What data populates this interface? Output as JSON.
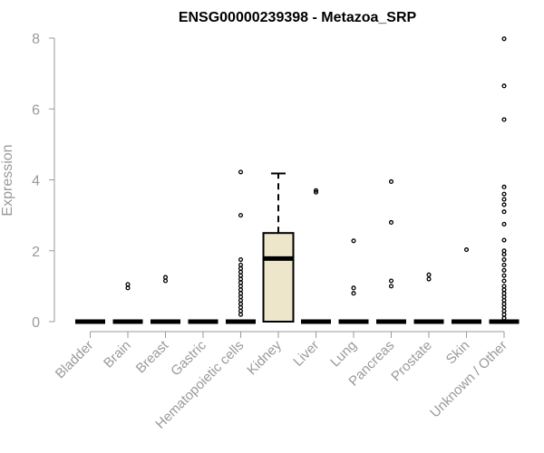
{
  "chart_data": {
    "type": "box",
    "title": "ENSG00000239398 - Metazoa_SRP",
    "xlabel": "",
    "ylabel": "Expression",
    "ylim": [
      0,
      8
    ],
    "yticks": [
      0,
      2,
      4,
      6,
      8
    ],
    "grid": false,
    "box_fill": "#ede6cb",
    "categories": [
      "Bladder",
      "Brain",
      "Breast",
      "Gastric",
      "Hematopoietic cells",
      "Kidney",
      "Liver",
      "Lung",
      "Pancreas",
      "Prostate",
      "Skin",
      "Unknown / Other"
    ],
    "boxes": [
      {
        "category": "Bladder",
        "q1": 0,
        "median": 0,
        "q3": 0,
        "whisker_low": 0,
        "whisker_high": 0,
        "outliers": []
      },
      {
        "category": "Brain",
        "q1": 0,
        "median": 0,
        "q3": 0,
        "whisker_low": 0,
        "whisker_high": 0,
        "outliers": [
          0.95,
          1.05
        ]
      },
      {
        "category": "Breast",
        "q1": 0,
        "median": 0,
        "q3": 0,
        "whisker_low": 0,
        "whisker_high": 0,
        "outliers": [
          1.15,
          1.25
        ]
      },
      {
        "category": "Gastric",
        "q1": 0,
        "median": 0,
        "q3": 0,
        "whisker_low": 0,
        "whisker_high": 0,
        "outliers": []
      },
      {
        "category": "Hematopoietic cells",
        "q1": 0,
        "median": 0,
        "q3": 0,
        "whisker_low": 0,
        "whisker_high": 0,
        "outliers": [
          0.2,
          0.3,
          0.4,
          0.5,
          0.6,
          0.7,
          0.8,
          0.9,
          1.0,
          1.1,
          1.2,
          1.3,
          1.4,
          1.5,
          1.6,
          1.75,
          3.0,
          4.22
        ]
      },
      {
        "category": "Kidney",
        "q1": 0,
        "median": 1.78,
        "q3": 2.5,
        "whisker_low": 0,
        "whisker_high": 4.18,
        "outliers": []
      },
      {
        "category": "Liver",
        "q1": 0,
        "median": 0,
        "q3": 0,
        "whisker_low": 0,
        "whisker_high": 0,
        "outliers": [
          3.65,
          3.7
        ]
      },
      {
        "category": "Lung",
        "q1": 0,
        "median": 0,
        "q3": 0,
        "whisker_low": 0,
        "whisker_high": 0,
        "outliers": [
          0.8,
          0.95,
          2.28
        ]
      },
      {
        "category": "Pancreas",
        "q1": 0,
        "median": 0,
        "q3": 0,
        "whisker_low": 0,
        "whisker_high": 0,
        "outliers": [
          1.0,
          1.15,
          2.8,
          3.95
        ]
      },
      {
        "category": "Prostate",
        "q1": 0,
        "median": 0,
        "q3": 0,
        "whisker_low": 0,
        "whisker_high": 0,
        "outliers": [
          1.2,
          1.32
        ]
      },
      {
        "category": "Skin",
        "q1": 0,
        "median": 0,
        "q3": 0,
        "whisker_low": 0,
        "whisker_high": 0,
        "outliers": [
          2.03
        ]
      },
      {
        "category": "Unknown / Other",
        "q1": 0,
        "median": 0,
        "q3": 0,
        "whisker_low": 0,
        "whisker_high": 0,
        "outliers": [
          0.1,
          0.2,
          0.3,
          0.4,
          0.5,
          0.6,
          0.7,
          0.8,
          0.9,
          1.0,
          1.15,
          1.3,
          1.45,
          1.6,
          1.75,
          1.9,
          2.0,
          2.3,
          2.75,
          3.1,
          3.3,
          3.45,
          3.6,
          3.8,
          5.7,
          6.65,
          7.98
        ]
      }
    ]
  }
}
